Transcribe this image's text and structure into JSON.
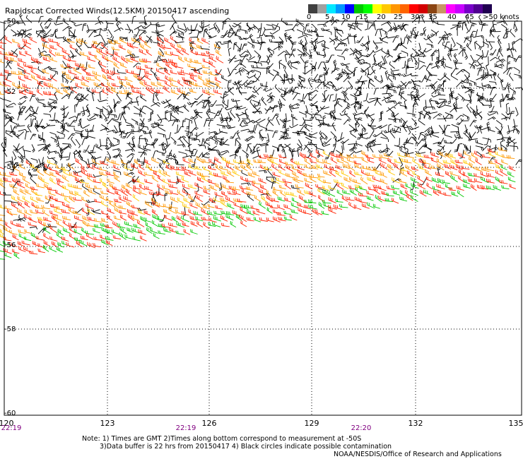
{
  "title": "Rapidscat Corrected Winds(12.5KM) 20150417 ascending",
  "scale": {
    "labels": [
      "0",
      "5",
      "10",
      "15",
      "20",
      "25",
      "30",
      "35",
      "40",
      "45",
      ">50 knots"
    ],
    "colors": [
      "#404040",
      "#a0a0a0",
      "#00e8ff",
      "#0096ff",
      "#0000ff",
      "#00c800",
      "#00ff00",
      "#ffff00",
      "#ffc800",
      "#ff9600",
      "#ff6400",
      "#ff0000",
      "#d20000",
      "#8b4513",
      "#c89664",
      "#ff00ff",
      "#c800ff",
      "#7800c8",
      "#500090",
      "#200050"
    ]
  },
  "map": {
    "lat_labels": [
      "-50",
      "-52",
      "-54",
      "-56",
      "-58",
      "-60"
    ],
    "lon_labels": [
      "120",
      "123",
      "126",
      "129",
      "132",
      "135"
    ],
    "time_labels": [
      "22:19",
      "22:19",
      "22:20"
    ],
    "barb_colors": {
      "calm": "#000000",
      "fresh": "#00c800",
      "strong": "#ffc800",
      "gale": "#ff9600",
      "storm": "#ff2000"
    }
  },
  "notes": {
    "line1": "Note: 1) Times are GMT 2)Times along bottom correspond to measurement at -50S",
    "line2": "3)Data buffer is 22 hrs from 20150417 4) Black circles indicate possible contamination",
    "line3": "NOAA/NESDIS/Office of Research and Applications"
  }
}
